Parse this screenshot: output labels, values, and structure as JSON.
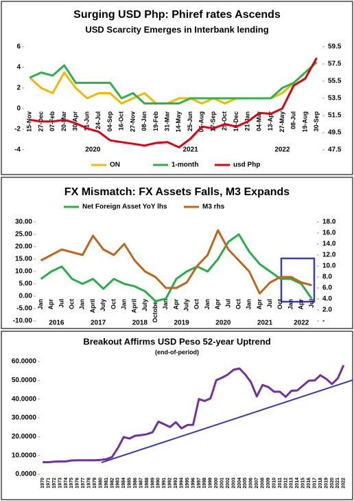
{
  "chart_data": [
    {
      "type": "line",
      "title": "Surging USD Php: Phiref rates Ascends",
      "subtitle": "USD Scarcity Emerges in Interbank lending",
      "categories": [
        "15-Nov",
        "27-Dec",
        "07-Feb",
        "20-Mar",
        "30-Apr",
        "11-Jun",
        "24-Jul",
        "04-Sep",
        "16-Oct",
        "27-Nov",
        "08-Jan",
        "19-Feb",
        "31-Mar",
        "14-May",
        "25-Jun",
        "06-Aug",
        "17-Sep",
        "29-Oct",
        "10-Dec",
        "21-Jan",
        "04-Mar",
        "13-Apr",
        "27-May",
        "08-Jul",
        "19-Aug",
        "30-Sep"
      ],
      "x_groups": [
        {
          "label": null,
          "span": 2
        },
        {
          "label": "2020",
          "span": 8
        },
        {
          "label": "2021",
          "span": 9
        },
        {
          "label": "2022",
          "span": 7
        }
      ],
      "series": [
        {
          "name": "ON",
          "color": "#f5b800",
          "values": [
            3,
            2,
            1.5,
            3.5,
            2,
            1,
            1.5,
            1.5,
            0.5,
            1,
            1.5,
            0.5,
            0.5,
            1,
            1,
            0.5,
            1,
            0.5,
            1,
            1,
            1,
            1,
            1.5,
            2.5,
            3.5,
            4.5
          ]
        },
        {
          "name": "1-month",
          "color": "#2db34a",
          "values": [
            3,
            3.5,
            3.2,
            4.2,
            2.5,
            2.5,
            2.5,
            2.5,
            1,
            1.5,
            0.5,
            0.5,
            0.5,
            0.5,
            1,
            1,
            1,
            1,
            1,
            1,
            1,
            1,
            2,
            2.5,
            3.5,
            4.5
          ]
        },
        {
          "name": "usd Php",
          "color": "#e0000f",
          "axis": "y2",
          "values": [
            51.0,
            50.8,
            50.8,
            51.0,
            50.6,
            50.0,
            49.6,
            48.6,
            48.4,
            48.2,
            48.0,
            48.3,
            48.4,
            47.8,
            48.8,
            50.2,
            50.0,
            50.5,
            50.2,
            50.8,
            51.8,
            51.7,
            52.3,
            55.0,
            55.8,
            58.2
          ]
        }
      ],
      "ylim": [
        -4,
        6
      ],
      "yticks": [
        -4,
        -2,
        0,
        2,
        4,
        6
      ],
      "y2lim": [
        47.5,
        59.5
      ],
      "y2ticks": [
        47.5,
        49.5,
        51.5,
        53.5,
        55.5,
        57.5,
        59.5
      ],
      "legend": "bottom",
      "grid": false
    },
    {
      "type": "line",
      "title": "FX Mismatch: FX Assets Falls, M3 Expands",
      "categories": [
        "Jan",
        "Apr",
        "Jul",
        "Oct",
        "Jan",
        "April",
        "July",
        "Oct",
        "Jan",
        "April",
        "July",
        "October",
        "Jan",
        "Apr",
        "July",
        "Oct",
        "Jan",
        "Apr",
        "Jul",
        "Oct",
        "Jan",
        "Apr",
        "Jul",
        "Oct",
        "Jan",
        "Apr",
        "Jul"
      ],
      "x_groups": [
        {
          "label": "2016",
          "span": 4
        },
        {
          "label": "2017",
          "span": 4
        },
        {
          "label": "2018",
          "span": 4
        },
        {
          "label": "2019",
          "span": 4
        },
        {
          "label": "2020",
          "span": 4
        },
        {
          "label": "2021",
          "span": 4
        },
        {
          "label": "2022",
          "span": 3
        }
      ],
      "series": [
        {
          "name": "Net Foreign Asset YoY lhs",
          "color": "#27ae4a",
          "values": [
            7,
            10,
            12,
            7,
            5,
            7,
            3,
            7,
            5,
            4,
            2,
            -2,
            -1,
            7,
            10,
            12,
            10,
            15,
            22,
            25,
            18,
            13,
            10,
            7,
            7,
            5,
            -1
          ]
        },
        {
          "name": "M3 rhs",
          "color": "#c0651a",
          "axis": "y2",
          "values": [
            11,
            12,
            13,
            12.5,
            12,
            15.5,
            13,
            12,
            14,
            11,
            9,
            8,
            6,
            6,
            7,
            10,
            12,
            16.5,
            13,
            11,
            9,
            5,
            7,
            8,
            8,
            7,
            6.5
          ]
        }
      ],
      "ylim": [
        -10,
        30
      ],
      "yticks": [
        {
          "value": -10,
          "label": "-10.00"
        },
        {
          "value": -5,
          "label": "-5.00"
        },
        {
          "value": 0,
          "label": "0.00"
        },
        {
          "value": 5,
          "label": "5.00"
        },
        {
          "value": 10,
          "label": "10.00"
        },
        {
          "value": 15,
          "label": "15.00"
        },
        {
          "value": 20,
          "label": "20.00"
        },
        {
          "value": 25,
          "label": "25.00"
        },
        {
          "value": 30,
          "label": "30.00"
        }
      ],
      "y2lim": [
        0,
        18
      ],
      "y2ticks": [
        {
          "value": 0,
          "label": "-"
        },
        {
          "value": 2,
          "label": "2.0"
        },
        {
          "value": 4,
          "label": "4.0"
        },
        {
          "value": 6,
          "label": "6.0"
        },
        {
          "value": 8,
          "label": "8.0"
        },
        {
          "value": 10,
          "label": "10.0"
        },
        {
          "value": 12,
          "label": "12.0"
        },
        {
          "value": 14,
          "label": "14.0"
        },
        {
          "value": 16,
          "label": "16.0"
        },
        {
          "value": 18,
          "label": "18.0"
        }
      ],
      "legend": "top",
      "grid": false
    },
    {
      "type": "line",
      "title": "Breakout Affirms USD Peso 52-year Uptrend",
      "subtitle": "(end-of-period)",
      "categories": [
        "1970",
        "1971",
        "1972",
        "1973",
        "1974",
        "1975",
        "1976",
        "1977",
        "1978",
        "1979",
        "1980",
        "1981",
        "1982",
        "1983",
        "1984",
        "1985",
        "1986",
        "1987",
        "1988",
        "1989",
        "1990",
        "1991",
        "1992",
        "1993",
        "1994",
        "1995",
        "1996",
        "1997",
        "1998",
        "1999",
        "2000",
        "2001",
        "2002",
        "2003",
        "2004",
        "2005",
        "2006",
        "2007",
        "2008",
        "2009",
        "2010",
        "2011",
        "2012",
        "2013",
        "2014",
        "2015",
        "2016",
        "2017",
        "2018",
        "2019",
        "2020",
        "2021",
        "2022"
      ],
      "series": [
        {
          "color": "#7030a0",
          "values": [
            6.4,
            6.4,
            6.7,
            6.8,
            6.8,
            7.3,
            7.4,
            7.4,
            7.4,
            7.4,
            7.6,
            8.0,
            9.2,
            14,
            19.8,
            19.0,
            20.5,
            20.8,
            21.3,
            22.4,
            28,
            26.6,
            25.1,
            27.7,
            24.4,
            26.2,
            26.3,
            40,
            39,
            40.3,
            50,
            51.4,
            53.1,
            55.6,
            56.3,
            53.1,
            49,
            41.4,
            47.5,
            46.4,
            43.9,
            43.9,
            41.2,
            44.4,
            44.6,
            47.2,
            49.8,
            49.9,
            52.7,
            50.7,
            48.0,
            51.0,
            58
          ]
        }
      ],
      "ylim": [
        0,
        60
      ],
      "yticks": [
        {
          "value": 0,
          "label": "0.0000"
        },
        {
          "value": 10,
          "label": "10.0000"
        },
        {
          "value": 20,
          "label": "20.0000"
        },
        {
          "value": 30,
          "label": "30.0000"
        },
        {
          "value": 40,
          "label": "40.0000"
        },
        {
          "value": 50,
          "label": "50.0000"
        },
        {
          "value": 60,
          "label": "60.0000"
        }
      ],
      "grid": false
    }
  ]
}
